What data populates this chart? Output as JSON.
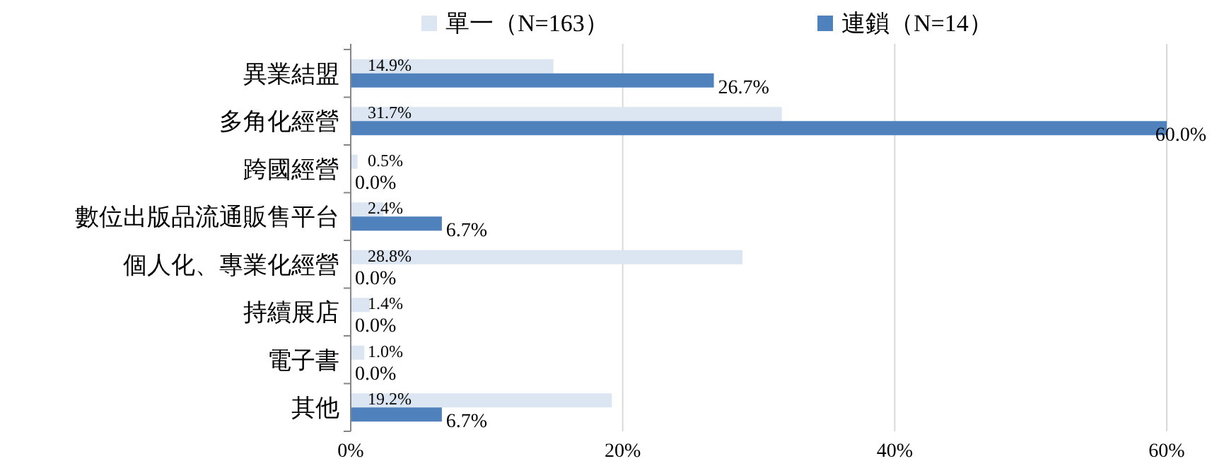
{
  "chart_data": {
    "type": "bar",
    "orientation": "horizontal",
    "categories": [
      "異業結盟",
      "多角化經營",
      "跨國經營",
      "數位出版品流通販售平台",
      "個人化、專業化經營",
      "持續展店",
      "電子書",
      "其他"
    ],
    "series": [
      {
        "name": "單一（N=163）",
        "color": "#dce6f2",
        "values": [
          14.9,
          31.7,
          0.5,
          2.4,
          28.8,
          1.4,
          1.0,
          19.2
        ],
        "value_labels": [
          "14.9%",
          "31.7%",
          "0.5%",
          "2.4%",
          "28.8%",
          "1.4%",
          "1.0%",
          "19.2%"
        ]
      },
      {
        "name": "連鎖（N=14）",
        "color": "#4f81bd",
        "values": [
          26.7,
          60.0,
          0.0,
          6.7,
          0.0,
          0.0,
          0.0,
          6.7
        ],
        "value_labels": [
          "26.7%",
          "60.0%",
          "0.0%",
          "6.7%",
          "0.0%",
          "0.0%",
          "0.0%",
          "6.7%"
        ]
      }
    ],
    "xlim": [
      0,
      60
    ],
    "xticks": [
      {
        "value": 0,
        "label": "0%"
      },
      {
        "value": 20,
        "label": "20%"
      },
      {
        "value": 40,
        "label": "40%"
      },
      {
        "value": 60,
        "label": "60%"
      }
    ],
    "grid": "x",
    "legend": "top"
  }
}
